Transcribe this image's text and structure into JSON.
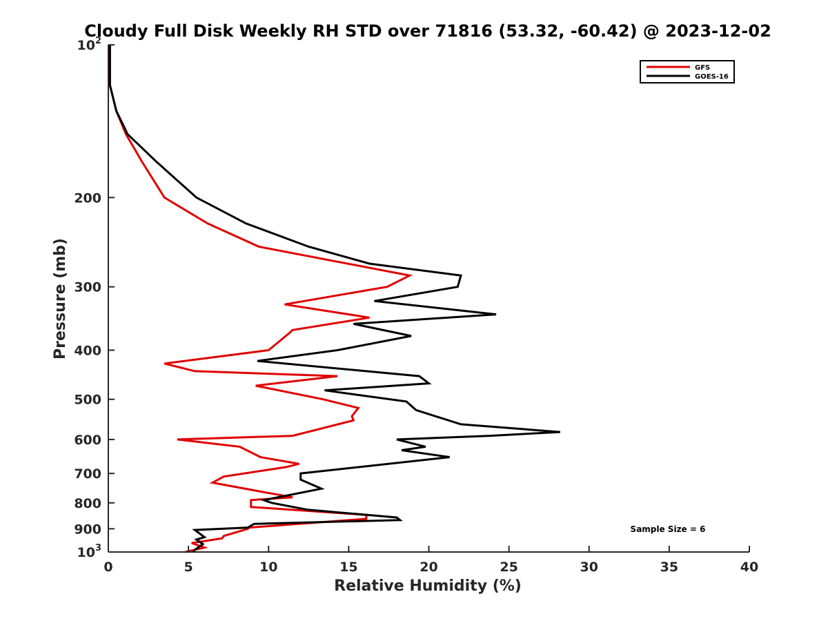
{
  "chart_data": {
    "type": "line",
    "title": "Cloudy Full Disk Weekly RH STD over 71816 (53.32, -60.42) @ 2023-12-02",
    "xlabel": "Relative Humidity (%)",
    "ylabel": "Pressure (mb)",
    "xlim": [
      0,
      40
    ],
    "ylim": [
      100,
      1000
    ],
    "yscale": "log",
    "y_reversed": true,
    "grid": false,
    "legend_position": "top-right",
    "x_ticks": [
      0,
      5,
      10,
      15,
      20,
      25,
      30,
      35,
      40
    ],
    "x_tick_labels": [
      "0",
      "5",
      "10",
      "15",
      "20",
      "25",
      "30",
      "35",
      "40"
    ],
    "y_ticks": [
      100,
      200,
      300,
      400,
      500,
      600,
      700,
      800,
      900,
      1000
    ],
    "y_tick_labels": [
      {
        "base": "10",
        "exp": "2"
      },
      {
        "base": "200",
        "exp": ""
      },
      {
        "base": "300",
        "exp": ""
      },
      {
        "base": "400",
        "exp": ""
      },
      {
        "base": "500",
        "exp": ""
      },
      {
        "base": "600",
        "exp": ""
      },
      {
        "base": "700",
        "exp": ""
      },
      {
        "base": "800",
        "exp": ""
      },
      {
        "base": "900",
        "exp": ""
      },
      {
        "base": "10",
        "exp": "3"
      }
    ],
    "annotation": "Sample Size = 6",
    "series": [
      {
        "name": "GFS",
        "color": "#e00000",
        "x": [
          0.1,
          0.1,
          0.5,
          1.1,
          2.1,
          3.5,
          6.2,
          9.4,
          18.8,
          17.4,
          11.0,
          16.3,
          11.5,
          11.3,
          10.0,
          3.5,
          5.4,
          14.3,
          9.2,
          13.4,
          15.6,
          15.2,
          15.3,
          11.5,
          4.3,
          8.2,
          9.5,
          11.9,
          11.1,
          7.2,
          6.5,
          9.5,
          11.5,
          8.9,
          8.9,
          16.1,
          16.1,
          8.8,
          8.7,
          7.2,
          7.1,
          5.2,
          6.0,
          4.8
        ],
        "y": [
          100,
          120,
          135,
          150,
          170,
          200,
          225,
          250,
          285,
          300,
          325,
          345,
          365,
          370,
          400,
          425,
          440,
          450,
          470,
          500,
          520,
          540,
          550,
          590,
          600,
          620,
          650,
          670,
          680,
          710,
          730,
          760,
          780,
          790,
          815,
          845,
          860,
          895,
          900,
          930,
          940,
          960,
          980,
          1000
        ]
      },
      {
        "name": "GOES-16",
        "color": "#000000",
        "x": [
          0.1,
          0.1,
          0.5,
          1.2,
          3.0,
          5.5,
          8.6,
          12.5,
          16.3,
          22.0,
          21.8,
          16.6,
          24.2,
          15.3,
          18.9,
          14.3,
          9.3,
          19.4,
          20.0,
          13.5,
          18.6,
          19.2,
          22.0,
          28.2,
          23.8,
          18.0,
          19.8,
          18.3,
          21.3,
          12.0,
          12.0,
          13.3,
          9.7,
          10.2,
          12.4,
          18.0,
          18.2,
          9.1,
          8.7,
          5.4,
          6.0,
          5.5,
          5.9,
          5.4,
          5.3
        ],
        "y": [
          100,
          120,
          135,
          150,
          170,
          200,
          225,
          250,
          270,
          285,
          300,
          320,
          340,
          355,
          375,
          400,
          420,
          450,
          465,
          480,
          505,
          525,
          560,
          580,
          590,
          600,
          620,
          630,
          650,
          700,
          720,
          750,
          790,
          800,
          825,
          855,
          865,
          880,
          895,
          905,
          935,
          945,
          965,
          990,
          1000
        ]
      }
    ]
  }
}
